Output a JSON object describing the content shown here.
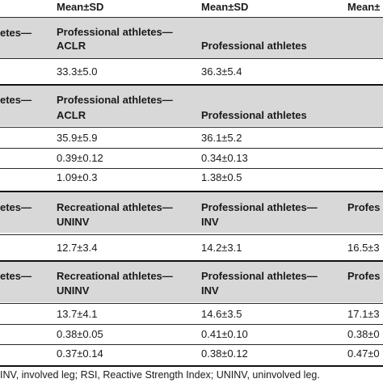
{
  "header": [
    "Mean±SD",
    "Mean±SD",
    "Mean±"
  ],
  "sections": [
    {
      "group_row": {
        "c0": "etes—",
        "c1": [
          "Professional athletes—",
          "ACLR"
        ],
        "c2": [
          "Professional athletes"
        ],
        "c3": []
      },
      "rows": [
        [
          "33.3±5.0",
          "36.3±5.4",
          ""
        ]
      ]
    },
    {
      "group_row": {
        "c0": "etes—",
        "c1": [
          "Professional athletes—",
          "ACLR"
        ],
        "c2": [
          "Professional athletes"
        ],
        "c3": []
      },
      "rows": [
        [
          "35.9±5.9",
          "36.1±5.2",
          ""
        ],
        [
          "0.39±0.12",
          "0.34±0.13",
          ""
        ],
        [
          "1.09±0.3",
          "1.38±0.5",
          ""
        ]
      ]
    },
    {
      "group_row": {
        "c0": "etes—",
        "c1": [
          "Recreational athletes—",
          "UNINV"
        ],
        "c2": [
          "Professional athletes—",
          "INV"
        ],
        "c3": [
          "Profes"
        ]
      },
      "rows": [
        [
          "12.7±3.4",
          "14.2±3.1",
          "16.5±3"
        ]
      ]
    },
    {
      "group_row": {
        "c0": "etes—",
        "c1": [
          "Recreational athletes—",
          "UNINV"
        ],
        "c2": [
          "Professional athletes—",
          "INV"
        ],
        "c3": [
          "Profes"
        ]
      },
      "rows": [
        [
          "13.7±4.1",
          "14.6±3.5",
          "17.1±3"
        ],
        [
          "0.38±0.05",
          "0.41±0.10",
          "0.38±0"
        ],
        [
          "0.37±0.14",
          "0.38±0.12",
          "0.47±0"
        ]
      ]
    }
  ],
  "footnote": "INV, involved leg; RSI, Reactive Strength Index; UNINV, uninvolved leg."
}
